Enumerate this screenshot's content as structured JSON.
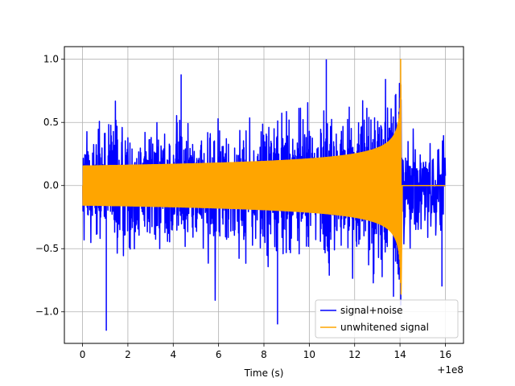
{
  "chart_data": {
    "type": "line",
    "title": "",
    "xlabel": "Time (s)",
    "ylabel": "",
    "x_offset_label": "+1e8",
    "xlim": [
      -0.8,
      16.8
    ],
    "ylim": [
      -1.25,
      1.1
    ],
    "grid": true,
    "legend_position": "lower-right",
    "x_ticks": [
      0,
      2,
      4,
      6,
      8,
      10,
      12,
      14,
      16
    ],
    "x_tick_labels": [
      "0",
      "2",
      "4",
      "6",
      "8",
      "10",
      "12",
      "14",
      "16"
    ],
    "y_ticks": [
      1.0,
      0.5,
      0.0,
      -0.5,
      -1.0
    ],
    "y_tick_labels": [
      "1.0",
      "0.5",
      "0.0",
      "−0.5",
      "−1.0"
    ],
    "series": [
      {
        "name": "signal+noise",
        "color": "#0000ff",
        "x_range": [
          0,
          16
        ],
        "description_values": {
          "max": 1.0,
          "min": -1.15
        }
      },
      {
        "name": "unwhitened signal",
        "color": "#ffa500",
        "x_range": [
          0,
          14.05
        ],
        "chirp_end": 14.05,
        "peak_max": 1.0,
        "peak_min": -0.86
      }
    ]
  }
}
